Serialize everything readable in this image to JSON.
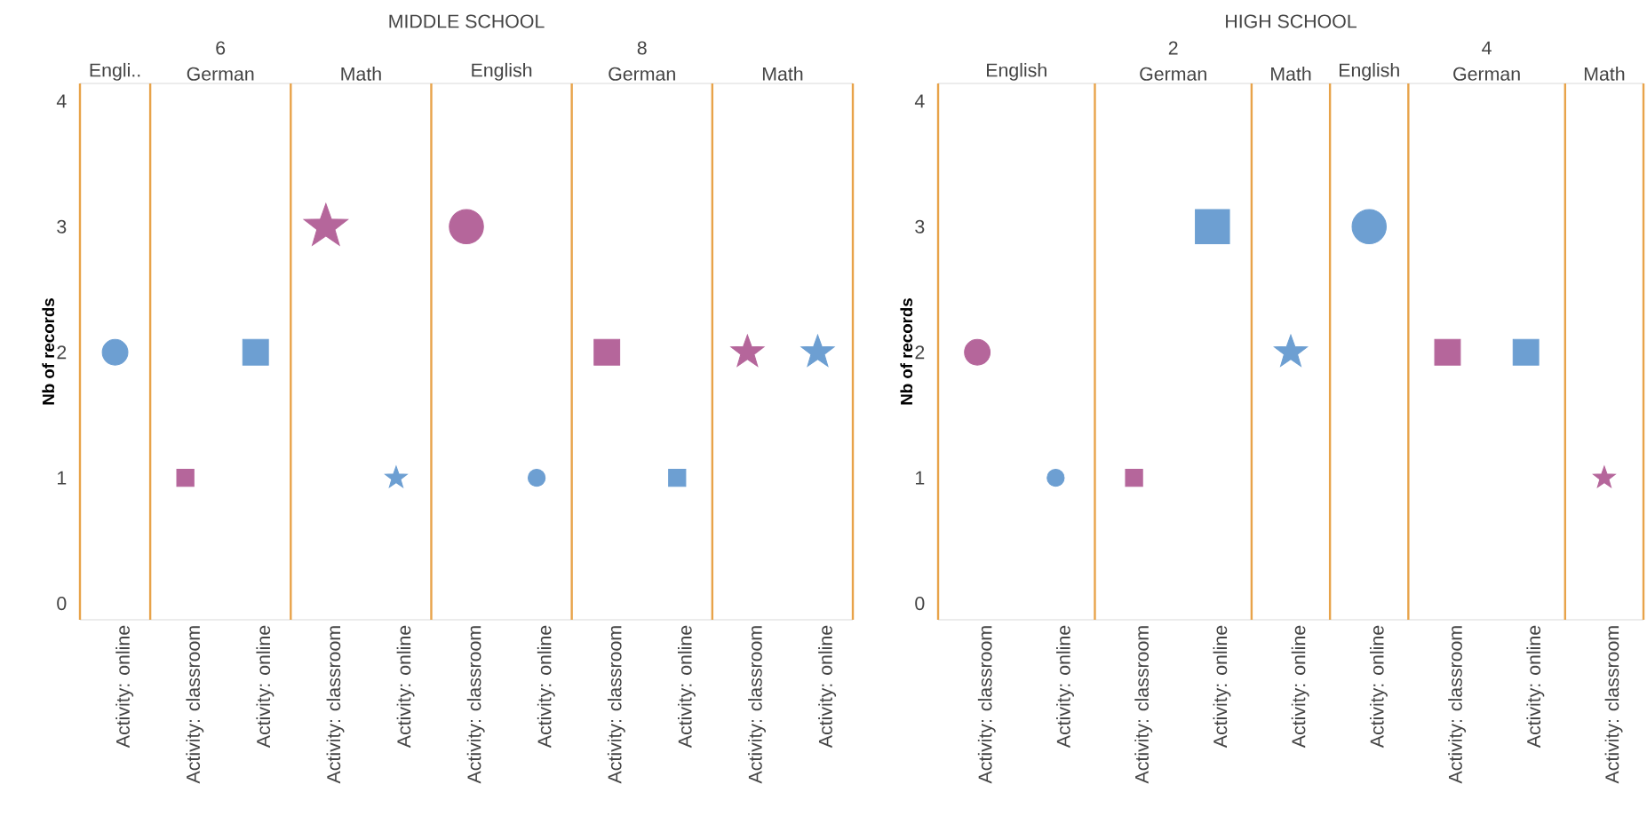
{
  "chart_data": [
    {
      "type": "scatter",
      "title": "Engli..",
      "ylabel": "Nb of records",
      "annotations": [
        "MIDDLE SCHOOL"
      ],
      "marker": "circle",
      "categories": [
        "Activity: online"
      ],
      "values": [
        2
      ],
      "colors": [
        "#6d9fd2"
      ],
      "ylim": [
        -0.13,
        4.14
      ],
      "yticks": [
        0,
        1,
        2,
        3,
        4
      ]
    },
    {
      "type": "scatter",
      "title": "German",
      "annotations": [
        "6"
      ],
      "marker": "square",
      "categories": [
        "Activity: classroom",
        "Activity: online"
      ],
      "values": [
        1,
        2
      ],
      "colors": [
        "#b5669b",
        "#6d9fd2"
      ],
      "ylim": [
        -0.13,
        4.14
      ],
      "yticks": [
        0,
        1,
        2,
        3,
        4
      ],
      "tick_labels": "x"
    },
    {
      "type": "scatter",
      "title": "Math",
      "marker": "star",
      "categories": [
        "Activity: classroom",
        "Activity: online"
      ],
      "values": [
        3,
        1
      ],
      "colors": [
        "#b5669b",
        "#6d9fd2"
      ],
      "ylim": [
        -0.13,
        4.14
      ],
      "yticks": [
        0,
        1,
        2,
        3,
        4
      ],
      "tick_labels": "x"
    },
    {
      "type": "scatter",
      "title": "English",
      "marker": "circle",
      "categories": [
        "Activity: classroom",
        "Activity: online"
      ],
      "values": [
        3,
        1
      ],
      "colors": [
        "#b5669b",
        "#6d9fd2"
      ],
      "ylim": [
        -0.13,
        4.14
      ],
      "yticks": [
        0,
        1,
        2,
        3,
        4
      ],
      "tick_labels": "x"
    },
    {
      "type": "scatter",
      "title": "German",
      "annotations": [
        "8"
      ],
      "marker": "square",
      "categories": [
        "Activity: classroom",
        "Activity: online"
      ],
      "values": [
        2,
        1
      ],
      "colors": [
        "#b5669b",
        "#6d9fd2"
      ],
      "ylim": [
        -0.13,
        4.14
      ],
      "yticks": [
        0,
        1,
        2,
        3,
        4
      ],
      "tick_labels": "x"
    },
    {
      "type": "scatter",
      "title": "Math",
      "marker": "star",
      "categories": [
        "Activity: classroom",
        "Activity: online"
      ],
      "values": [
        2,
        2
      ],
      "colors": [
        "#b5669b",
        "#6d9fd2"
      ],
      "ylim": [
        -0.13,
        4.14
      ],
      "yticks": [
        0,
        1,
        2,
        3,
        4
      ],
      "tick_labels": "x"
    },
    {
      "type": "scatter",
      "title": "English",
      "ylabel": "Nb of records",
      "annotations": [
        "HIGH SCHOOL"
      ],
      "marker": "circle",
      "categories": [
        "Activity: classroom",
        "Activity: online"
      ],
      "values": [
        2,
        1
      ],
      "colors": [
        "#b5669b",
        "#6d9fd2"
      ],
      "ylim": [
        -0.13,
        4.14
      ],
      "yticks": [
        0,
        1,
        2,
        3,
        4
      ]
    },
    {
      "type": "scatter",
      "title": "German",
      "annotations": [
        "2"
      ],
      "marker": "square",
      "categories": [
        "Activity: classroom",
        "Activity: online"
      ],
      "values": [
        1,
        3
      ],
      "colors": [
        "#b5669b",
        "#6d9fd2"
      ],
      "ylim": [
        -0.13,
        4.14
      ],
      "yticks": [
        0,
        1,
        2,
        3,
        4
      ],
      "tick_labels": "x"
    },
    {
      "type": "scatter",
      "title": "Math",
      "marker": "star",
      "categories": [
        "Activity: online"
      ],
      "values": [
        2
      ],
      "colors": [
        "#6d9fd2"
      ],
      "ylim": [
        -0.13,
        4.14
      ],
      "yticks": [
        0,
        1,
        2,
        3,
        4
      ],
      "tick_labels": "x"
    },
    {
      "type": "scatter",
      "title": "English",
      "marker": "circle",
      "categories": [
        "Activity: online"
      ],
      "values": [
        3
      ],
      "colors": [
        "#6d9fd2"
      ],
      "ylim": [
        -0.13,
        4.14
      ],
      "yticks": [
        0,
        1,
        2,
        3,
        4
      ],
      "tick_labels": "x"
    },
    {
      "type": "scatter",
      "title": "German",
      "annotations": [
        "4"
      ],
      "marker": "square",
      "categories": [
        "Activity: classroom",
        "Activity: online"
      ],
      "values": [
        2,
        2
      ],
      "colors": [
        "#b5669b",
        "#6d9fd2"
      ],
      "ylim": [
        -0.13,
        4.14
      ],
      "yticks": [
        0,
        1,
        2,
        3,
        4
      ],
      "tick_labels": "x"
    },
    {
      "type": "scatter",
      "title": "Math",
      "marker": "star",
      "categories": [
        "Activity: classroom"
      ],
      "values": [
        1
      ],
      "colors": [
        "#b5669b"
      ],
      "ylim": [
        -0.13,
        4.14
      ],
      "yticks": [
        0,
        1,
        2,
        3,
        4
      ],
      "tick_labels": "x"
    }
  ]
}
